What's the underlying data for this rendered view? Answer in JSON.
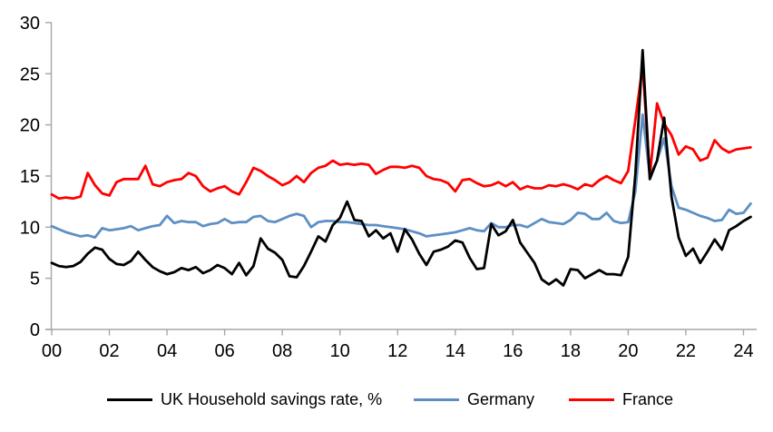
{
  "chart_data": {
    "type": "line",
    "title": "",
    "xlabel": "",
    "ylabel": "",
    "x_axis": {
      "tick_labels": [
        "00",
        "02",
        "04",
        "06",
        "08",
        "10",
        "12",
        "14",
        "16",
        "18",
        "20",
        "22",
        "24"
      ],
      "tick_years": [
        2000,
        2002,
        2004,
        2006,
        2008,
        2010,
        2012,
        2014,
        2016,
        2018,
        2020,
        2022,
        2024
      ],
      "range": [
        2000,
        2024.5
      ]
    },
    "y_axis": {
      "ticks": [
        0,
        5,
        10,
        15,
        20,
        25,
        30
      ],
      "range": [
        0,
        30
      ]
    },
    "grid": false,
    "legend_position": "bottom",
    "axis_color": "#a6a6a6",
    "frequency": "quarterly",
    "start_period": "2000Q1",
    "end_period": "2024Q2",
    "series": [
      {
        "id": "uk",
        "name": "UK Household savings rate, %",
        "color": "#000000",
        "values": [
          6.5,
          6.2,
          6.1,
          6.2,
          6.6,
          7.4,
          8.0,
          7.8,
          6.9,
          6.4,
          6.3,
          6.7,
          7.6,
          6.8,
          6.1,
          5.7,
          5.4,
          5.6,
          6.0,
          5.8,
          6.1,
          5.5,
          5.8,
          6.3,
          6.0,
          5.4,
          6.5,
          5.3,
          6.2,
          8.9,
          7.9,
          7.5,
          6.8,
          5.2,
          5.1,
          6.2,
          7.6,
          9.1,
          8.6,
          10.2,
          10.9,
          12.5,
          10.7,
          10.6,
          9.1,
          9.7,
          8.9,
          9.4,
          7.6,
          9.8,
          8.8,
          7.4,
          6.3,
          7.6,
          7.8,
          8.1,
          8.7,
          8.5,
          7.0,
          5.9,
          6.0,
          10.3,
          9.2,
          9.6,
          10.7,
          8.5,
          7.5,
          6.5,
          4.9,
          4.4,
          4.9,
          4.3,
          5.9,
          5.8,
          5.0,
          5.4,
          5.8,
          5.4,
          5.4,
          5.3,
          7.1,
          15.2,
          27.3,
          14.7,
          16.5,
          20.7,
          13.0,
          9.0,
          7.2,
          7.9,
          6.5,
          7.6,
          8.8,
          7.8,
          9.7,
          10.1,
          10.6,
          11.0
        ]
      },
      {
        "id": "germany",
        "name": "Germany",
        "color": "#5e8fc4",
        "values": [
          10.1,
          9.8,
          9.5,
          9.3,
          9.1,
          9.2,
          9.0,
          9.9,
          9.7,
          9.8,
          9.9,
          10.1,
          9.7,
          9.9,
          10.1,
          10.2,
          11.1,
          10.4,
          10.6,
          10.5,
          10.5,
          10.1,
          10.3,
          10.4,
          10.8,
          10.4,
          10.5,
          10.5,
          11.0,
          11.1,
          10.6,
          10.5,
          10.8,
          11.1,
          11.3,
          11.1,
          10.0,
          10.5,
          10.6,
          10.6,
          10.5,
          10.5,
          10.4,
          10.3,
          10.2,
          10.2,
          10.1,
          10.0,
          9.9,
          9.8,
          9.6,
          9.4,
          9.1,
          9.2,
          9.3,
          9.4,
          9.5,
          9.7,
          9.9,
          9.7,
          9.6,
          10.4,
          10.0,
          10.0,
          10.2,
          10.2,
          10.0,
          10.4,
          10.8,
          10.5,
          10.4,
          10.3,
          10.7,
          11.4,
          11.3,
          10.8,
          10.8,
          11.4,
          10.6,
          10.4,
          10.5,
          13.5,
          21.0,
          15.0,
          16.5,
          18.7,
          14.0,
          11.9,
          11.7,
          11.4,
          11.1,
          10.9,
          10.6,
          10.7,
          11.7,
          11.3,
          11.4,
          12.3
        ]
      },
      {
        "id": "france",
        "name": "France",
        "color": "#ff0000",
        "values": [
          13.2,
          12.8,
          12.9,
          12.8,
          13.0,
          15.3,
          14.1,
          13.3,
          13.1,
          14.4,
          14.7,
          14.7,
          14.7,
          16.0,
          14.2,
          14.0,
          14.4,
          14.6,
          14.7,
          15.3,
          15.0,
          14.0,
          13.5,
          13.8,
          14.0,
          13.5,
          13.2,
          14.4,
          15.8,
          15.5,
          15.0,
          14.6,
          14.1,
          14.4,
          15.0,
          14.4,
          15.3,
          15.8,
          16.0,
          16.5,
          16.1,
          16.2,
          16.1,
          16.2,
          16.1,
          15.2,
          15.6,
          15.9,
          15.9,
          15.8,
          16.0,
          15.8,
          15.0,
          14.7,
          14.6,
          14.3,
          13.5,
          14.6,
          14.7,
          14.3,
          14.0,
          14.1,
          14.4,
          14.0,
          14.4,
          13.7,
          14.0,
          13.8,
          13.8,
          14.1,
          14.0,
          14.2,
          14.0,
          13.7,
          14.2,
          14.0,
          14.6,
          15.0,
          14.6,
          14.3,
          15.5,
          20.5,
          25.8,
          15.0,
          22.1,
          20.1,
          19.0,
          17.1,
          17.9,
          17.6,
          16.5,
          16.8,
          18.5,
          17.7,
          17.3,
          17.6,
          17.7,
          17.8
        ]
      }
    ]
  }
}
